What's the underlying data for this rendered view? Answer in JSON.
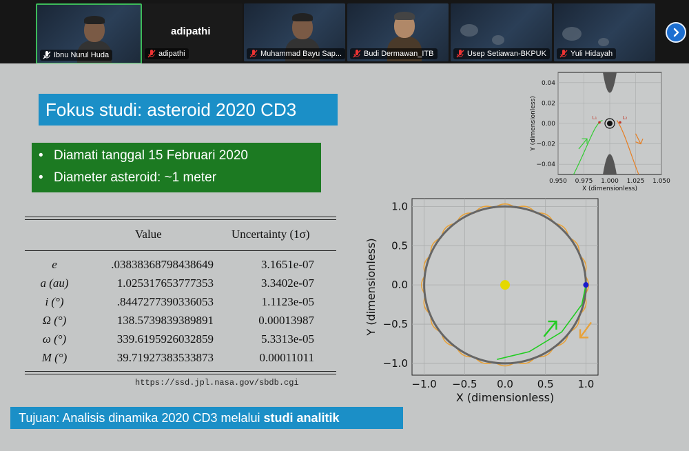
{
  "gallery": {
    "tiles": [
      {
        "name": "Ibnu Nurul Huda",
        "type": "video",
        "active": true
      },
      {
        "name": "adipathi",
        "type": "nametile",
        "display": "adipathi"
      },
      {
        "name": "Muhammad Bayu Sap...",
        "type": "video"
      },
      {
        "name": "Budi Dermawan_ITB",
        "type": "video"
      },
      {
        "name": "Usep Setiawan-BKPUK",
        "type": "video"
      },
      {
        "name": "Yuli Hidayah",
        "type": "video"
      }
    ],
    "next_icon": "chevron-right-icon",
    "muted_icon": "mic-muted-icon",
    "active_color": "#3dbb5a"
  },
  "slide": {
    "title": "Fokus studi: asteroid 2020 CD3",
    "bullets": [
      "Diamati tanggal 15 Februari 2020",
      "Diameter asteroid: ~1 meter"
    ],
    "table": {
      "headers": [
        "Value",
        "Uncertainty (1σ)"
      ],
      "rows": [
        {
          "param": "e",
          "value": ".03838368798438649",
          "unc": "3.1651e-07"
        },
        {
          "param": "a (au)",
          "value": "1.025317653777353",
          "unc": "3.3402e-07"
        },
        {
          "param": "i (°)",
          "value": ".8447277390336053",
          "unc": "1.1123e-05"
        },
        {
          "param": "Ω (°)",
          "value": "138.5739839389891",
          "unc": "0.00013987"
        },
        {
          "param": "ω (°)",
          "value": "339.6195926032859",
          "unc": "5.3313e-05"
        },
        {
          "param": "M (°)",
          "value": "39.71927383533873",
          "unc": "0.00011011"
        }
      ],
      "source": "https://ssd.jpl.nasa.gov/sbdb.cgi"
    },
    "goal_prefix": "Tujuan: Analisis dinamika 2020 CD3 melalui ",
    "goal_bold": "studi analitik",
    "colors": {
      "title_bg": "#1b8fc7",
      "facts_bg": "#1c7a22",
      "slide_bg": "#c4c6c6"
    }
  },
  "chart_data": [
    {
      "type": "line",
      "xlabel": "X (dimensionless)",
      "ylabel": "Y (dimensionless)",
      "xlim": [
        -1.15,
        1.15
      ],
      "ylim": [
        -1.15,
        1.1
      ],
      "xticks": [
        "−1.0",
        "−0.5",
        "0.0",
        "0.5",
        "1.0"
      ],
      "yticks": [
        "1.0",
        "0.5",
        "0.0",
        "−0.5",
        "−1.0"
      ],
      "grid": true,
      "series": [
        {
          "kind": "circle",
          "center": [
            0,
            0
          ],
          "radius": 1.0,
          "color": "#666666"
        },
        {
          "kind": "epicycle",
          "center": [
            0,
            0
          ],
          "radius": 1.0,
          "amplitude": 0.04,
          "lobes": 24,
          "color": "#e8a23a"
        },
        {
          "kind": "point",
          "x": 0,
          "y": 0,
          "color": "#e5d800"
        },
        {
          "kind": "point",
          "x": 1.0,
          "y": 0,
          "color": "#1a1acc"
        },
        {
          "kind": "approach-arc",
          "color": "#22cc22",
          "x": [
            -0.1,
            0.3,
            0.7,
            0.95,
            1.0
          ],
          "y": [
            -0.95,
            -0.85,
            -0.6,
            -0.25,
            0
          ]
        }
      ]
    },
    {
      "type": "line",
      "xlabel": "X (dimensionless)",
      "ylabel": "Y (dimensionless)",
      "xlim": [
        0.95,
        1.05
      ],
      "ylim": [
        -0.05,
        0.05
      ],
      "xticks": [
        "0.950",
        "0.975",
        "1.000",
        "1.025",
        "1.050"
      ],
      "yticks": [
        "0.04",
        "0.02",
        "0.00",
        "−0.02",
        "−0.04"
      ],
      "grid": true,
      "labels": [
        "L₁",
        "L₂"
      ],
      "series": [
        {
          "kind": "forbidden-region",
          "color": "#555555"
        },
        {
          "kind": "point",
          "x": 1.0,
          "y": 0,
          "color": "#000000"
        },
        {
          "kind": "trajectory",
          "color": "#33cc33"
        },
        {
          "kind": "trajectory",
          "color": "#e67e22"
        }
      ]
    }
  ]
}
